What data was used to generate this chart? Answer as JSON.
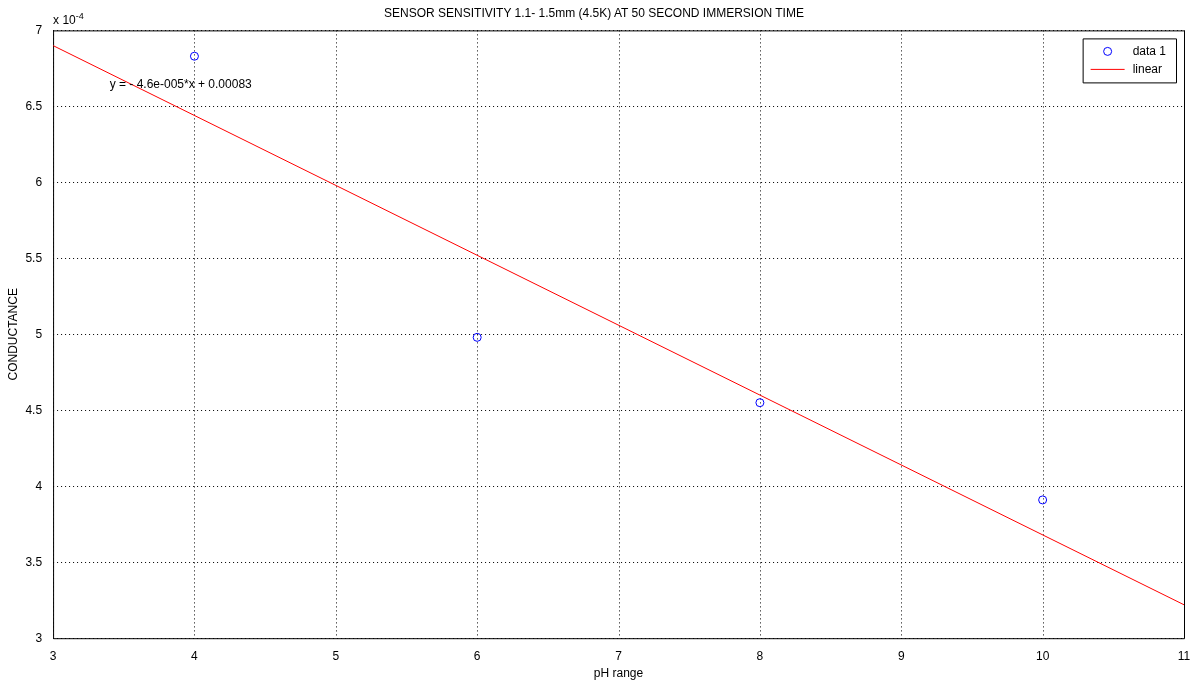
{
  "chart_data": {
    "type": "scatter",
    "title": "SENSOR SENSITIVITY 1.1- 1.5mm (4.5K) AT 50 SECOND IMMERSION TIME",
    "xlabel": "pH range",
    "ylabel": "CONDUCTANCE",
    "x": [
      4,
      6,
      8,
      10
    ],
    "series": [
      {
        "name": "data 1",
        "type": "scatter",
        "color": "#0000ff",
        "marker": "circle",
        "values": [
          6.83,
          4.98,
          4.55,
          3.91
        ]
      },
      {
        "name": "linear",
        "type": "line",
        "color": "#ff0000",
        "marker": "none",
        "x": [
          3,
          11
        ],
        "values": [
          6.9,
          3.22
        ]
      }
    ],
    "xlim": [
      3,
      11
    ],
    "xticks": [
      3,
      4,
      5,
      6,
      7,
      8,
      9,
      10,
      11
    ],
    "ylim": [
      3,
      7
    ],
    "yticks": [
      3,
      3.5,
      4,
      4.5,
      5,
      5.5,
      6,
      6.5,
      7
    ],
    "grid": true,
    "legend": "top right",
    "annotations": [
      "y = - 4.6e-005*x + 0.00083",
      "x 10$^{-4}$"
    ]
  }
}
